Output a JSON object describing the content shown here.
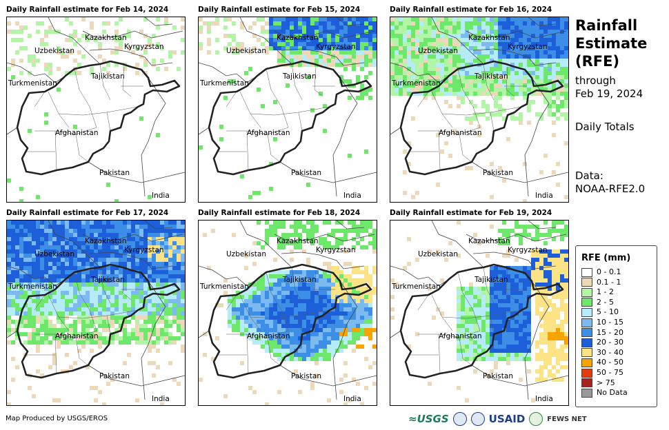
{
  "panels": [
    {
      "title": "Daily Rainfall estimate for Feb 14, 2024",
      "level": 0
    },
    {
      "title": "Daily Rainfall estimate for Feb 15, 2024",
      "level": 1
    },
    {
      "title": "Daily Rainfall estimate for Feb 16, 2024",
      "level": 2
    },
    {
      "title": "Daily Rainfall estimate for Feb 17, 2024",
      "level": 3
    },
    {
      "title": "Daily Rainfall estimate for Feb 18, 2024",
      "level": 4
    },
    {
      "title": "Daily Rainfall estimate for Feb 19, 2024",
      "level": 5
    }
  ],
  "countries": {
    "kazakhstan": "Kazakhstan",
    "kyrgyzstan": "Kyrgyzstan",
    "uzbekistan": "Uzbekistan",
    "tajikistan": "Tajikistan",
    "turkmenistan": "Turkmenistan",
    "afghanistan": "Afghanistan",
    "pakistan": "Pakistan",
    "india": "India"
  },
  "side": {
    "title_line1": "Rainfall",
    "title_line2": "Estimate",
    "title_line3": "(RFE)",
    "through": "through",
    "date": "Feb 19, 2024",
    "daily": "Daily Totals",
    "data_label": "Data:",
    "data_source": "NOAA-RFE2.0"
  },
  "legend": {
    "title": "RFE (mm)",
    "items": [
      {
        "label": "0 - 0.1",
        "color": "#ffffff"
      },
      {
        "label": "0.1 - 1",
        "color": "#ecd9b9"
      },
      {
        "label": "1 - 2",
        "color": "#b3f5a6"
      },
      {
        "label": "2 - 5",
        "color": "#6ee86b"
      },
      {
        "label": "5 - 10",
        "color": "#b5ecf7"
      },
      {
        "label": "10 - 15",
        "color": "#7bbbf1"
      },
      {
        "label": "15 - 20",
        "color": "#3d8ee6"
      },
      {
        "label": "20 - 30",
        "color": "#1d5fd9"
      },
      {
        "label": "30 - 40",
        "color": "#fce486"
      },
      {
        "label": "40 - 50",
        "color": "#f7a400"
      },
      {
        "label": "50 - 75",
        "color": "#e43b0c"
      },
      {
        "label": "> 75",
        "color": "#a82020"
      },
      {
        "label": "No Data",
        "color": "#999999"
      }
    ]
  },
  "footer": "Map Produced by USGS/EROS",
  "logos": {
    "usgs": "≈USGS",
    "usaid": "USAID",
    "fews": "FEWS NET"
  }
}
